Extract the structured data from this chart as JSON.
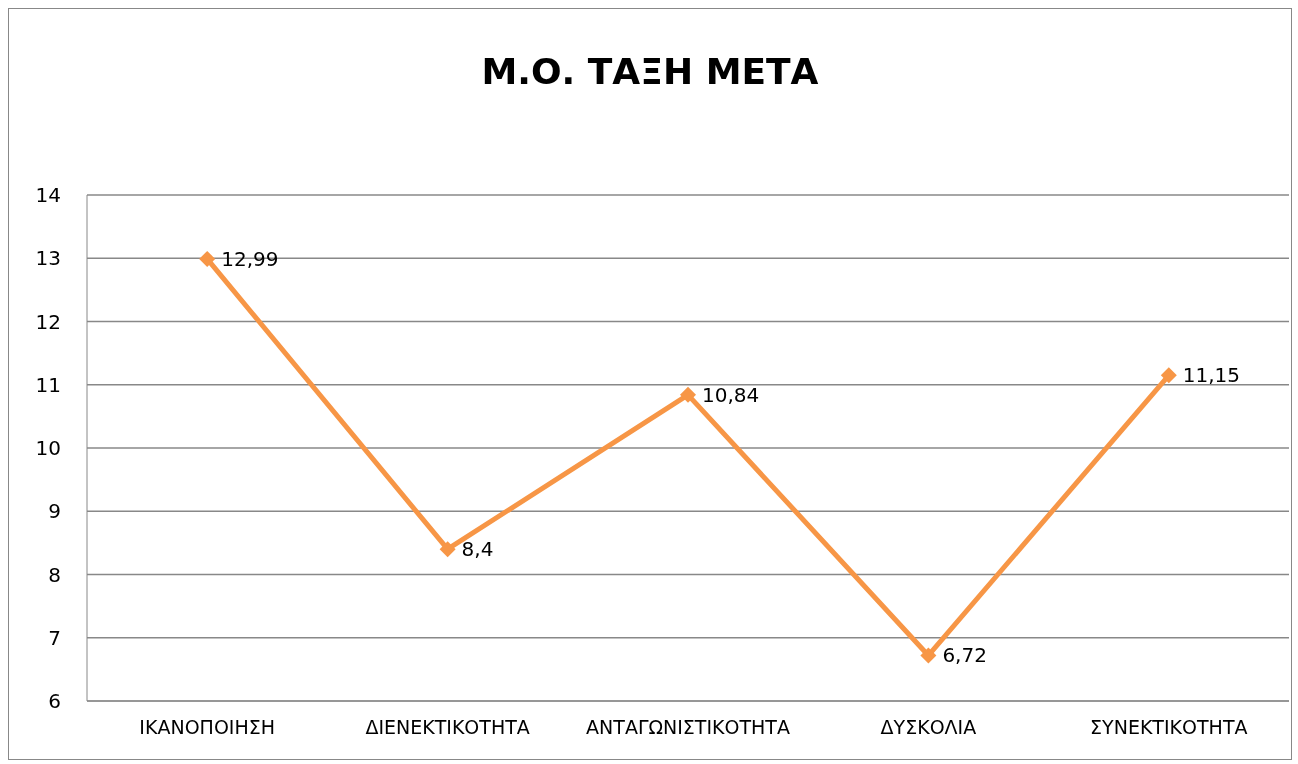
{
  "chart_data": {
    "type": "line",
    "title": "Μ.Ο. ΤΑΞΗ ΜΕΤΑ",
    "categories": [
      "ΙΚΑΝΟΠΟΙΗΣΗ",
      "ΔΙΕΝΕΚΤΙΚΟΤΗΤΑ",
      "ΑΝΤΑΓΩΝΙΣΤΙΚΟΤΗΤΑ",
      "ΔΥΣΚΟΛΙΑ",
      "ΣΥΝΕΚΤΙΚΟΤΗΤΑ"
    ],
    "series": [
      {
        "color": "#f79646",
        "values": [
          12.99,
          8.4,
          10.84,
          6.72,
          11.15
        ],
        "value_labels": [
          "12,99",
          "8,4",
          "10,84",
          "6,72",
          "11,15"
        ]
      }
    ],
    "ylim": [
      6,
      14
    ],
    "yticks": [
      6,
      7,
      8,
      9,
      10,
      11,
      12,
      13,
      14
    ],
    "grid": "y",
    "legend": false,
    "marker": "diamond",
    "line_style": "solid"
  }
}
